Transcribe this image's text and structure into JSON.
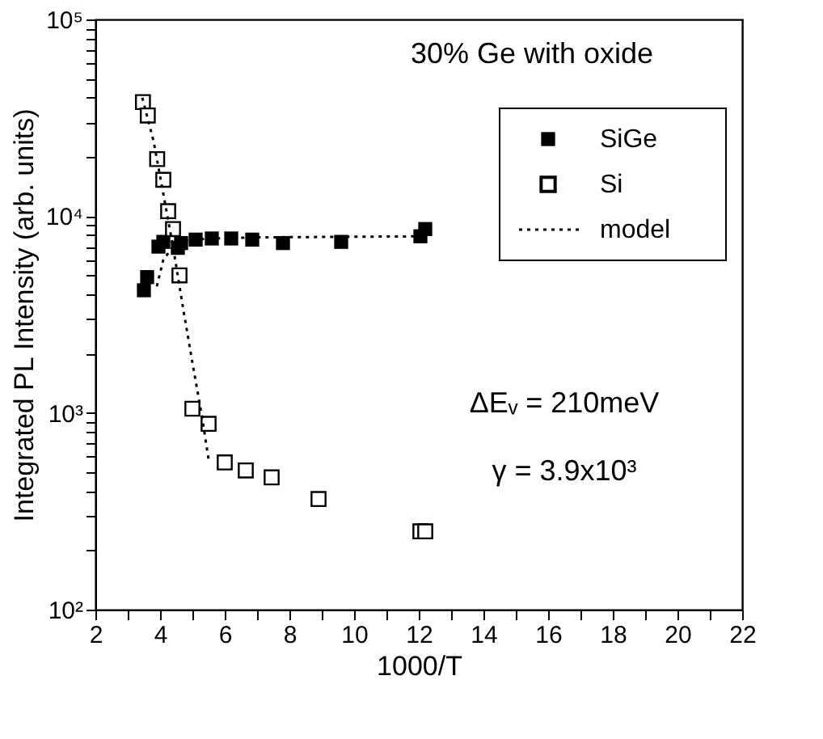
{
  "chart_data": {
    "type": "scatter",
    "xlabel": "1000/T",
    "ylabel": "Integrated PL Intensity (arb. units)",
    "annotations": [
      "30% Ge with oxide",
      "ΔEᵥ = 210meV",
      "γ = 3.9x10³"
    ],
    "log": "y",
    "grid": false,
    "legend": "top right",
    "xlim": [
      2,
      22
    ],
    "ylim": [
      100,
      100000
    ],
    "xticks": [
      2,
      {
        "value": 3,
        "label": null
      },
      4,
      {
        "value": 5,
        "label": null
      },
      6,
      {
        "value": 7,
        "label": null
      },
      8,
      {
        "value": 9,
        "label": null
      },
      10,
      {
        "value": 11,
        "label": null
      },
      12,
      {
        "value": 13,
        "label": null
      },
      14,
      {
        "value": 15,
        "label": null
      },
      16,
      {
        "value": 17,
        "label": null
      },
      18,
      {
        "value": 19,
        "label": null
      },
      20,
      {
        "value": 21,
        "label": null
      },
      22
    ],
    "yticks": [
      {
        "value": 100,
        "label": "10²"
      },
      {
        "value": 200,
        "label": null
      },
      {
        "value": 300,
        "label": null
      },
      {
        "value": 400,
        "label": null
      },
      {
        "value": 500,
        "label": null
      },
      {
        "value": 600,
        "label": null
      },
      {
        "value": 700,
        "label": null
      },
      {
        "value": 800,
        "label": null
      },
      {
        "value": 900,
        "label": null
      },
      {
        "value": 1000,
        "label": "10³"
      },
      {
        "value": 2000,
        "label": null
      },
      {
        "value": 3000,
        "label": null
      },
      {
        "value": 4000,
        "label": null
      },
      {
        "value": 5000,
        "label": null
      },
      {
        "value": 6000,
        "label": null
      },
      {
        "value": 7000,
        "label": null
      },
      {
        "value": 8000,
        "label": null
      },
      {
        "value": 9000,
        "label": null
      },
      {
        "value": 10000,
        "label": "10⁴"
      },
      {
        "value": 20000,
        "label": null
      },
      {
        "value": 30000,
        "label": null
      },
      {
        "value": 40000,
        "label": null
      },
      {
        "value": 50000,
        "label": null
      },
      {
        "value": 60000,
        "label": null
      },
      {
        "value": 70000,
        "label": null
      },
      {
        "value": 80000,
        "label": null
      },
      {
        "value": 90000,
        "label": null
      },
      {
        "value": 100000,
        "label": "10⁵"
      }
    ],
    "series": [
      {
        "name": "SiGe",
        "marker": "square",
        "color": "#000000",
        "x": [
          3.5,
          3.6,
          3.95,
          4.1,
          4.55,
          4.65,
          5.1,
          5.6,
          6.2,
          6.85,
          7.8,
          9.6,
          12.05,
          12.2
        ],
        "values": [
          4200,
          4900,
          7000,
          7400,
          6900,
          7300,
          7600,
          7700,
          7700,
          7600,
          7300,
          7400,
          7900,
          8600
        ]
      },
      {
        "name": "Si",
        "marker": "square",
        "color": "#000000",
        "x": [
          3.47,
          3.62,
          3.91,
          4.1,
          4.25,
          4.4,
          4.6,
          5.0,
          5.5,
          6.0,
          6.65,
          7.45,
          8.9,
          12.05,
          12.2
        ],
        "values": [
          38000,
          32500,
          19500,
          15300,
          10600,
          8600,
          5000,
          1050,
          880,
          560,
          510,
          470,
          365,
          250,
          250
        ]
      },
      {
        "name": "model",
        "type": "line",
        "marker": "none",
        "line_style": "dotted",
        "color": "#000000",
        "x": [
          3.45,
          3.8,
          4.1,
          4.4,
          4.7,
          5.0,
          5.3,
          5.5
        ],
        "values": [
          40000,
          24000,
          13000,
          7000,
          3500,
          1800,
          950,
          580
        ]
      },
      {
        "type": "line",
        "marker": "none",
        "line_style": "dotted",
        "color": "#000000",
        "x": [
          3.9,
          4.1,
          4.4,
          4.8,
          5.5,
          7.0,
          12.2
        ],
        "values": [
          4400,
          6000,
          7000,
          7500,
          7700,
          7800,
          7900
        ]
      }
    ]
  }
}
